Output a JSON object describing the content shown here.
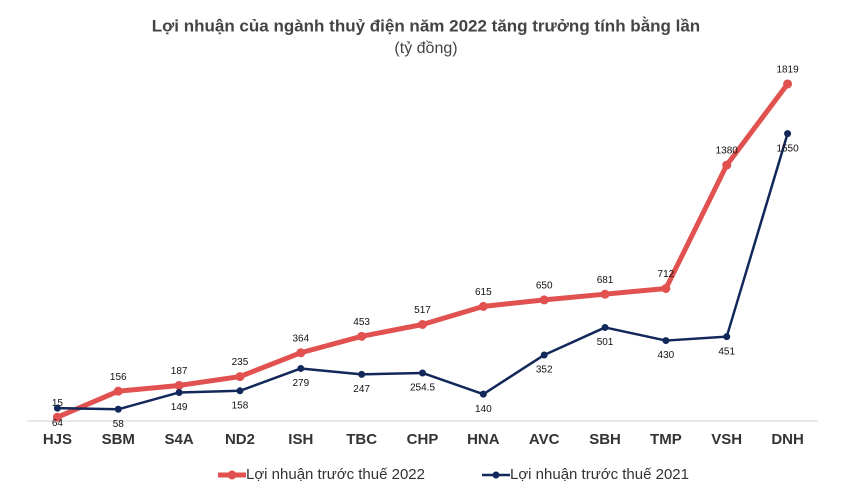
{
  "chart_data": {
    "type": "line",
    "title": "Lợi nhuận của ngành thuỷ điện năm 2022 tăng trưởng tính bằng lần",
    "subtitle": "(tỷ đồng)",
    "categories": [
      "HJS",
      "SBM",
      "S4A",
      "ND2",
      "ISH",
      "TBC",
      "CHP",
      "HNA",
      "AVC",
      "SBH",
      "TMP",
      "VSH",
      "DNH"
    ],
    "series": [
      {
        "name": "Lợi nhuận trước thuế 2022",
        "color": "#e0514f",
        "values": [
          15,
          156,
          187,
          235,
          364,
          453,
          517,
          615,
          650,
          681,
          712,
          1380,
          1819
        ]
      },
      {
        "name": "Lợi nhuận trước thuế 2021",
        "color": "#13285a",
        "values": [
          64,
          58,
          149,
          158,
          279,
          247,
          254.5,
          140,
          352,
          501,
          430,
          451,
          1550
        ]
      }
    ],
    "ylim": [
      0,
      1900
    ]
  }
}
